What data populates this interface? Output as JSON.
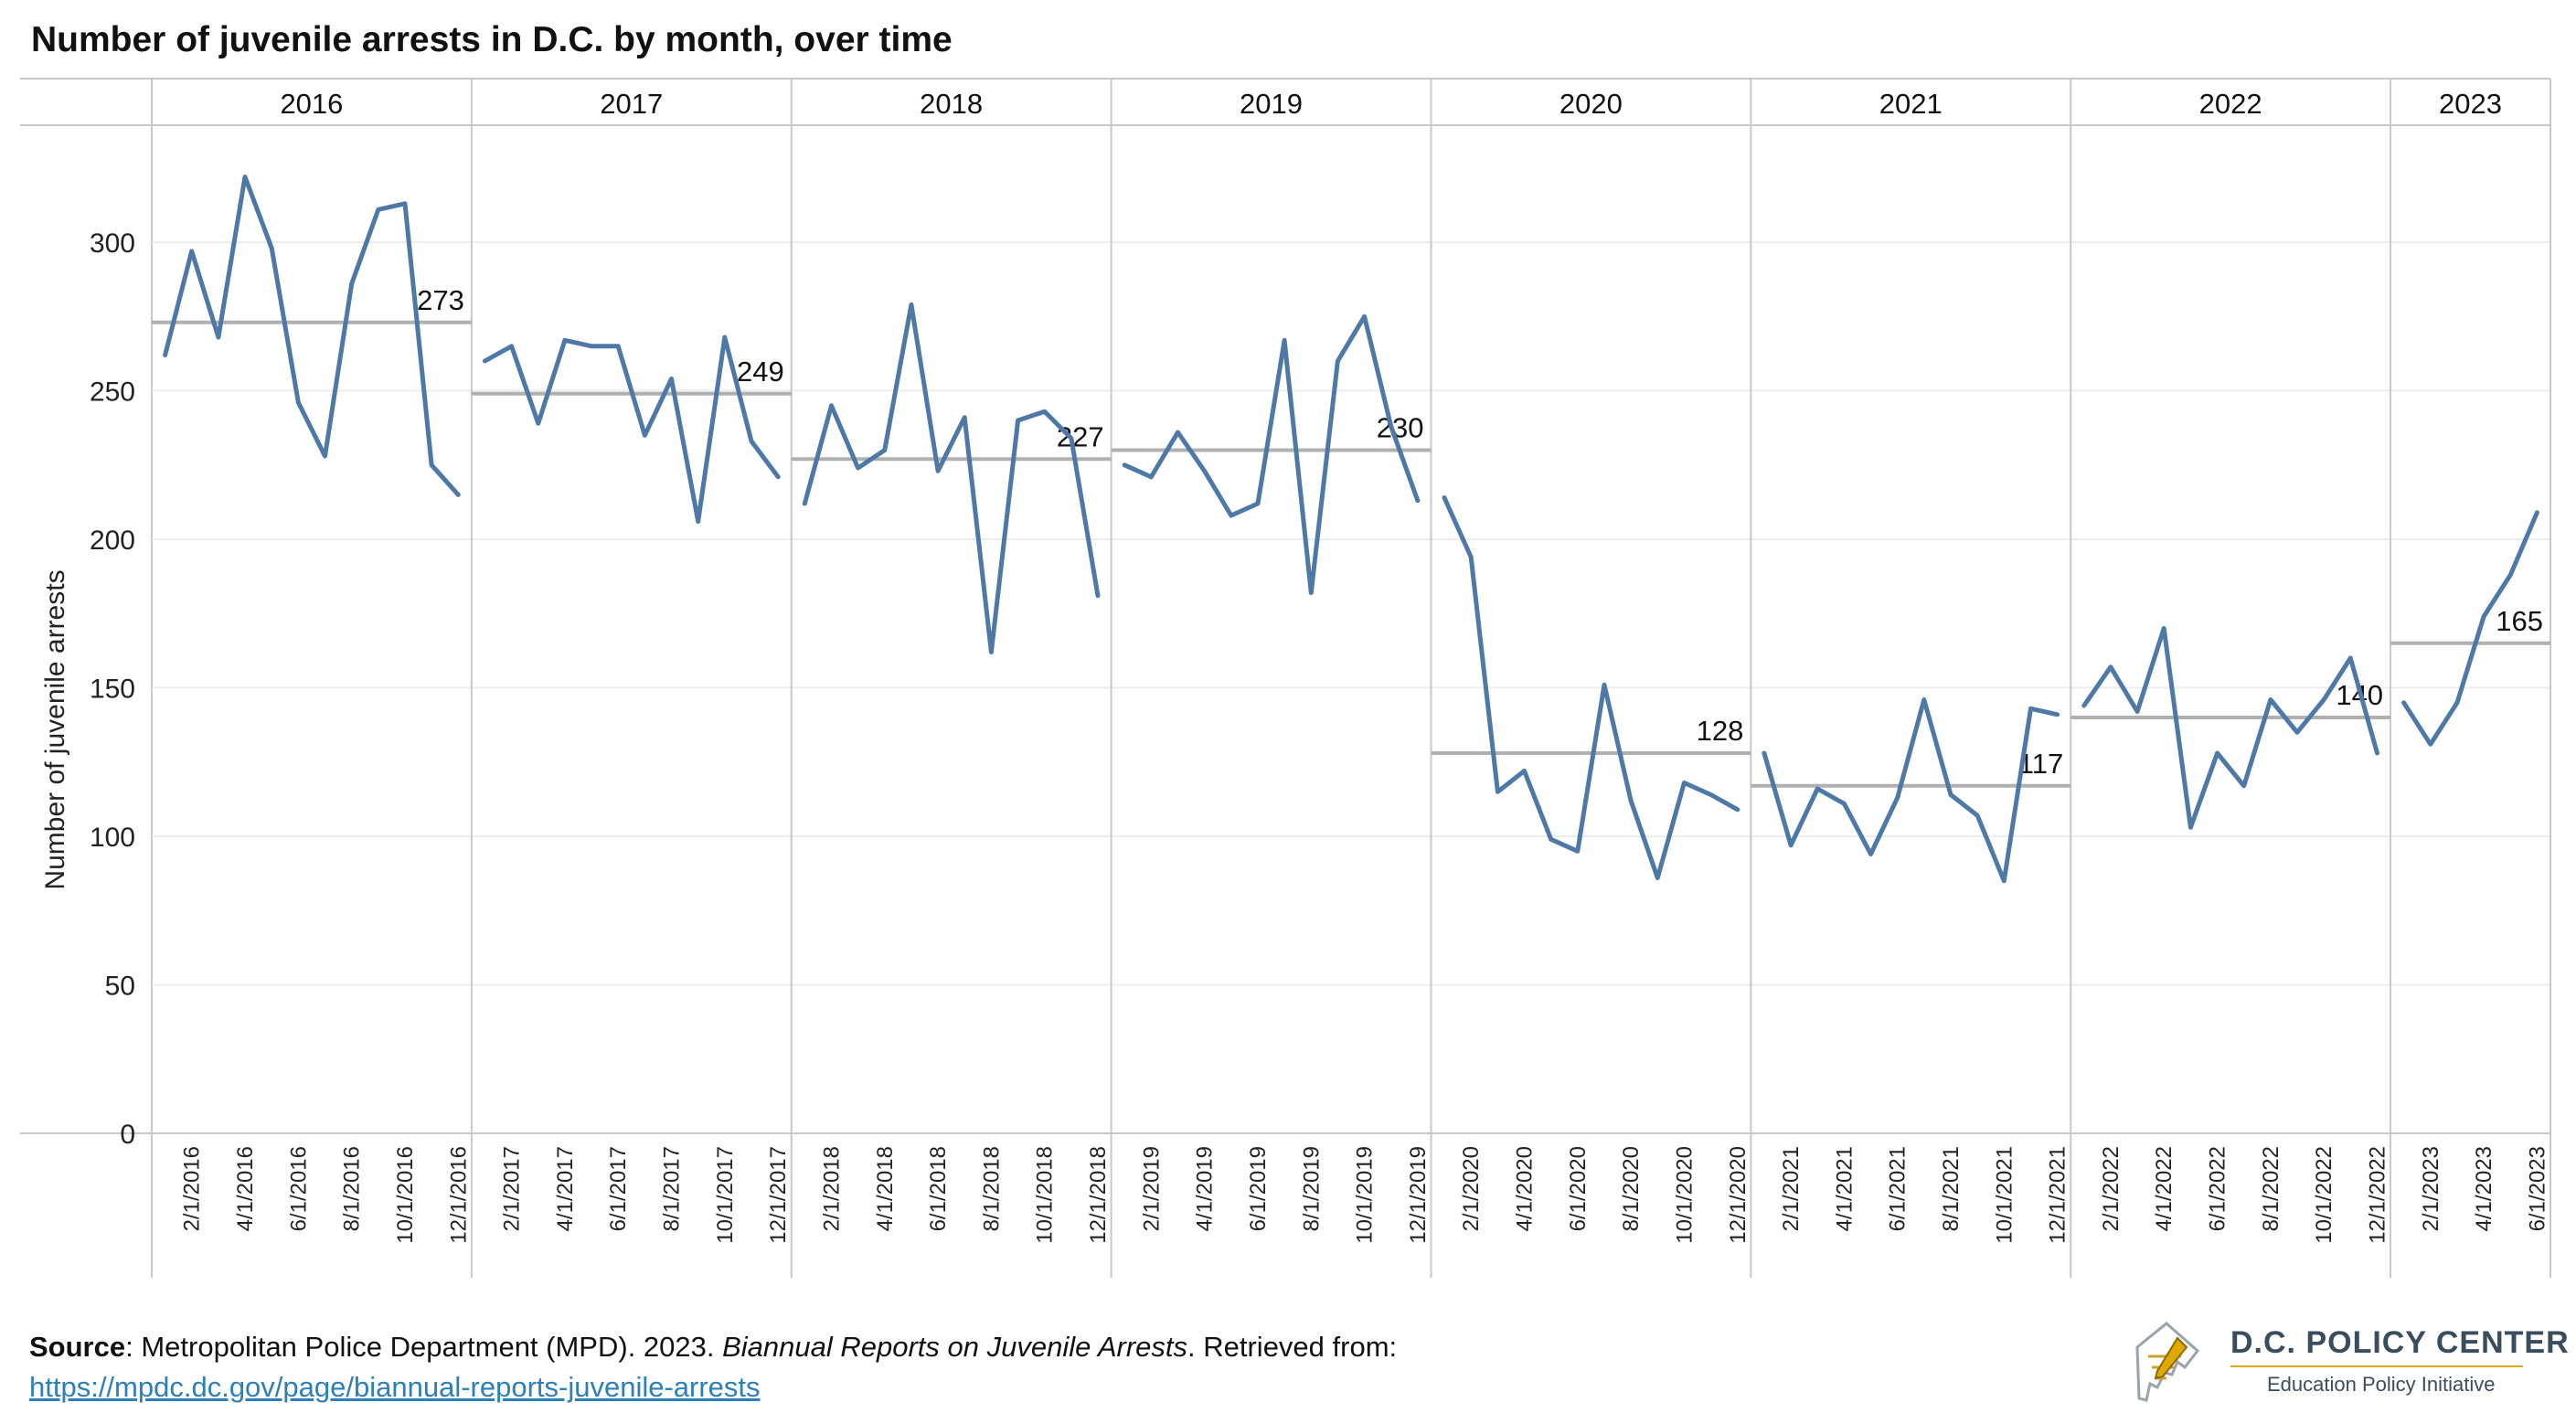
{
  "title": "Number of juvenile arrests in D.C. by month, over time",
  "source": {
    "label": "Source",
    "text_before": ": Metropolitan Police Department (MPD). 2023. ",
    "italic": "Biannual Reports on Juvenile Arrests",
    "text_after": ". Retrieved from:",
    "link": "https://mpdc.dc.gov/page/biannual-reports-juvenile-arrests"
  },
  "logo": {
    "name": "D.C. POLICY CENTER",
    "subtitle": "Education Policy Initiative"
  },
  "colors": {
    "line": "#4e79a7",
    "average": "#b0b0b0",
    "grid": "#ececec",
    "divider": "#c8c8c8"
  },
  "chart_data": {
    "type": "line",
    "ylabel": "Number of juvenile arrests",
    "ylim": [
      0,
      340
    ],
    "yticks": [
      0,
      50,
      100,
      150,
      200,
      250,
      300
    ],
    "grid": true,
    "series_name": "",
    "panels": [
      {
        "year": "2016",
        "months": [
          "1/1/2016",
          "2/1/2016",
          "3/1/2016",
          "4/1/2016",
          "5/1/2016",
          "6/1/2016",
          "7/1/2016",
          "8/1/2016",
          "9/1/2016",
          "10/1/2016",
          "11/1/2016",
          "12/1/2016"
        ],
        "tick_labels": [
          "2/1/2016",
          "4/1/2016",
          "6/1/2016",
          "8/1/2016",
          "10/1/2016",
          "12/1/2016"
        ],
        "values": [
          262,
          297,
          268,
          322,
          298,
          246,
          228,
          286,
          311,
          313,
          225,
          215
        ],
        "average": 273,
        "average_label": "273"
      },
      {
        "year": "2017",
        "months": [
          "1/1/2017",
          "2/1/2017",
          "3/1/2017",
          "4/1/2017",
          "5/1/2017",
          "6/1/2017",
          "7/1/2017",
          "8/1/2017",
          "9/1/2017",
          "10/1/2017",
          "11/1/2017",
          "12/1/2017"
        ],
        "tick_labels": [
          "2/1/2017",
          "4/1/2017",
          "6/1/2017",
          "8/1/2017",
          "10/1/2017",
          "12/1/2017"
        ],
        "values": [
          260,
          265,
          239,
          267,
          265,
          265,
          235,
          254,
          206,
          268,
          233,
          221
        ],
        "average": 249,
        "average_label": "249"
      },
      {
        "year": "2018",
        "months": [
          "1/1/2018",
          "2/1/2018",
          "3/1/2018",
          "4/1/2018",
          "5/1/2018",
          "6/1/2018",
          "7/1/2018",
          "8/1/2018",
          "9/1/2018",
          "10/1/2018",
          "11/1/2018",
          "12/1/2018"
        ],
        "tick_labels": [
          "2/1/2018",
          "4/1/2018",
          "6/1/2018",
          "8/1/2018",
          "10/1/2018",
          "12/1/2018"
        ],
        "values": [
          212,
          245,
          224,
          230,
          279,
          223,
          241,
          162,
          240,
          243,
          234,
          181
        ],
        "average": 227,
        "average_label": "227"
      },
      {
        "year": "2019",
        "months": [
          "1/1/2019",
          "2/1/2019",
          "3/1/2019",
          "4/1/2019",
          "5/1/2019",
          "6/1/2019",
          "7/1/2019",
          "8/1/2019",
          "9/1/2019",
          "10/1/2019",
          "11/1/2019",
          "12/1/2019"
        ],
        "tick_labels": [
          "2/1/2019",
          "4/1/2019",
          "6/1/2019",
          "8/1/2019",
          "10/1/2019",
          "12/1/2019"
        ],
        "values": [
          225,
          221,
          236,
          223,
          208,
          212,
          267,
          182,
          260,
          275,
          238,
          213
        ],
        "average": 230,
        "average_label": "230"
      },
      {
        "year": "2020",
        "months": [
          "1/1/2020",
          "2/1/2020",
          "3/1/2020",
          "4/1/2020",
          "5/1/2020",
          "6/1/2020",
          "7/1/2020",
          "8/1/2020",
          "9/1/2020",
          "10/1/2020",
          "11/1/2020",
          "12/1/2020"
        ],
        "tick_labels": [
          "2/1/2020",
          "4/1/2020",
          "6/1/2020",
          "8/1/2020",
          "10/1/2020",
          "12/1/2020"
        ],
        "values": [
          214,
          194,
          115,
          122,
          99,
          95,
          151,
          112,
          86,
          118,
          114,
          109
        ],
        "average": 128,
        "average_label": "128"
      },
      {
        "year": "2021",
        "months": [
          "1/1/2021",
          "2/1/2021",
          "3/1/2021",
          "4/1/2021",
          "5/1/2021",
          "6/1/2021",
          "7/1/2021",
          "8/1/2021",
          "9/1/2021",
          "10/1/2021",
          "11/1/2021",
          "12/1/2021"
        ],
        "tick_labels": [
          "2/1/2021",
          "4/1/2021",
          "6/1/2021",
          "8/1/2021",
          "10/1/2021",
          "12/1/2021"
        ],
        "values": [
          128,
          97,
          116,
          111,
          94,
          113,
          146,
          114,
          107,
          85,
          143,
          141
        ],
        "average": 117,
        "average_label": "117"
      },
      {
        "year": "2022",
        "months": [
          "1/1/2022",
          "2/1/2022",
          "3/1/2022",
          "4/1/2022",
          "5/1/2022",
          "6/1/2022",
          "7/1/2022",
          "8/1/2022",
          "9/1/2022",
          "10/1/2022",
          "11/1/2022",
          "12/1/2022"
        ],
        "tick_labels": [
          "2/1/2022",
          "4/1/2022",
          "6/1/2022",
          "8/1/2022",
          "10/1/2022",
          "12/1/2022"
        ],
        "values": [
          144,
          157,
          142,
          170,
          103,
          128,
          117,
          146,
          135,
          146,
          160,
          128
        ],
        "average": 140,
        "average_label": "140"
      },
      {
        "year": "2023",
        "months": [
          "1/1/2023",
          "2/1/2023",
          "3/1/2023",
          "4/1/2023",
          "5/1/2023",
          "6/1/2023"
        ],
        "tick_labels": [
          "2/1/2023",
          "4/1/2023",
          "6/1/2023"
        ],
        "values": [
          145,
          131,
          145,
          174,
          188,
          209
        ],
        "average": 165,
        "average_label": "165"
      }
    ]
  }
}
